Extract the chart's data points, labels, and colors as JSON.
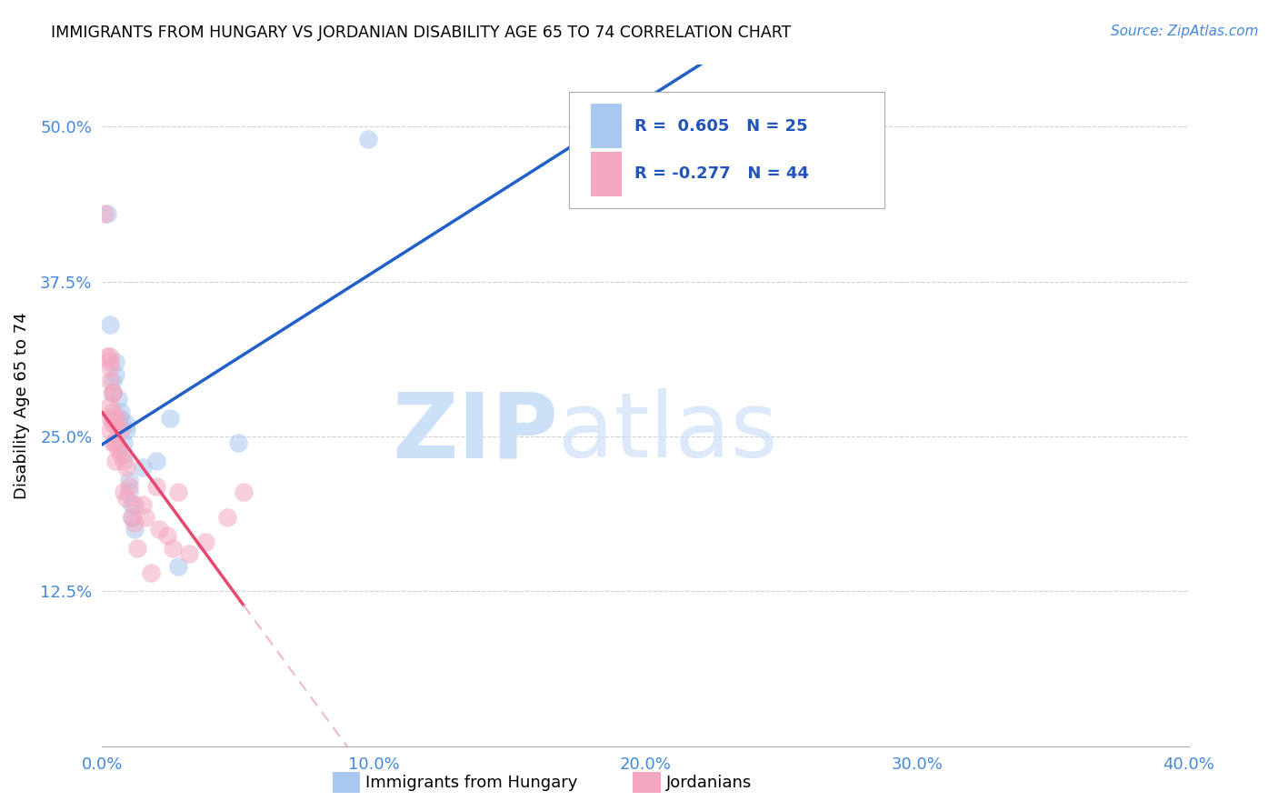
{
  "title": "IMMIGRANTS FROM HUNGARY VS JORDANIAN DISABILITY AGE 65 TO 74 CORRELATION CHART",
  "source": "Source: ZipAtlas.com",
  "ylabel": "Disability Age 65 to 74",
  "x_tick_labels": [
    "0.0%",
    "10.0%",
    "20.0%",
    "30.0%",
    "40.0%"
  ],
  "x_tick_values": [
    0.0,
    0.1,
    0.2,
    0.3,
    0.4
  ],
  "y_tick_labels": [
    "12.5%",
    "25.0%",
    "37.5%",
    "50.0%"
  ],
  "y_tick_values": [
    0.125,
    0.25,
    0.375,
    0.5
  ],
  "xlim": [
    0.0,
    0.4
  ],
  "ylim": [
    0.0,
    0.55
  ],
  "hungary_color": "#a8c8f0",
  "jordan_color": "#f4a8c0",
  "hungary_line_color": "#2060c8",
  "jordan_line_color": "#e84870",
  "jordan_line_dashed_color": "#f0b8cc",
  "watermark_zip": "ZIP",
  "watermark_atlas": "atlas",
  "watermark_color": "#cce0f8",
  "axis_color": "#4488dd",
  "grid_color": "#cccccc",
  "legend_hungary_color": "#a8c8f0",
  "legend_jordan_color": "#f4a8c0",
  "legend_text_color": "#2255bb",
  "hungary_scatter": [
    [
      0.002,
      0.43
    ],
    [
      0.003,
      0.34
    ],
    [
      0.004,
      0.295
    ],
    [
      0.004,
      0.285
    ],
    [
      0.005,
      0.31
    ],
    [
      0.005,
      0.3
    ],
    [
      0.006,
      0.28
    ],
    [
      0.006,
      0.265
    ],
    [
      0.007,
      0.27
    ],
    [
      0.007,
      0.265
    ],
    [
      0.008,
      0.245
    ],
    [
      0.008,
      0.235
    ],
    [
      0.009,
      0.26
    ],
    [
      0.009,
      0.255
    ],
    [
      0.01,
      0.215
    ],
    [
      0.01,
      0.205
    ],
    [
      0.011,
      0.195
    ],
    [
      0.011,
      0.185
    ],
    [
      0.012,
      0.175
    ],
    [
      0.015,
      0.225
    ],
    [
      0.02,
      0.23
    ],
    [
      0.025,
      0.265
    ],
    [
      0.028,
      0.145
    ],
    [
      0.05,
      0.245
    ],
    [
      0.098,
      0.49
    ]
  ],
  "jordan_scatter": [
    [
      0.001,
      0.43
    ],
    [
      0.002,
      0.315
    ],
    [
      0.003,
      0.315
    ],
    [
      0.003,
      0.305
    ],
    [
      0.003,
      0.31
    ],
    [
      0.003,
      0.295
    ],
    [
      0.003,
      0.275
    ],
    [
      0.003,
      0.265
    ],
    [
      0.003,
      0.255
    ],
    [
      0.004,
      0.285
    ],
    [
      0.004,
      0.27
    ],
    [
      0.004,
      0.26
    ],
    [
      0.004,
      0.245
    ],
    [
      0.004,
      0.285
    ],
    [
      0.004,
      0.265
    ],
    [
      0.005,
      0.245
    ],
    [
      0.005,
      0.26
    ],
    [
      0.005,
      0.245
    ],
    [
      0.005,
      0.23
    ],
    [
      0.006,
      0.265
    ],
    [
      0.006,
      0.24
    ],
    [
      0.007,
      0.255
    ],
    [
      0.007,
      0.235
    ],
    [
      0.008,
      0.23
    ],
    [
      0.008,
      0.205
    ],
    [
      0.009,
      0.225
    ],
    [
      0.009,
      0.2
    ],
    [
      0.01,
      0.21
    ],
    [
      0.011,
      0.185
    ],
    [
      0.012,
      0.195
    ],
    [
      0.012,
      0.18
    ],
    [
      0.013,
      0.16
    ],
    [
      0.015,
      0.195
    ],
    [
      0.016,
      0.185
    ],
    [
      0.018,
      0.14
    ],
    [
      0.02,
      0.21
    ],
    [
      0.021,
      0.175
    ],
    [
      0.024,
      0.17
    ],
    [
      0.026,
      0.16
    ],
    [
      0.028,
      0.205
    ],
    [
      0.032,
      0.155
    ],
    [
      0.038,
      0.165
    ],
    [
      0.046,
      0.185
    ],
    [
      0.052,
      0.205
    ]
  ]
}
